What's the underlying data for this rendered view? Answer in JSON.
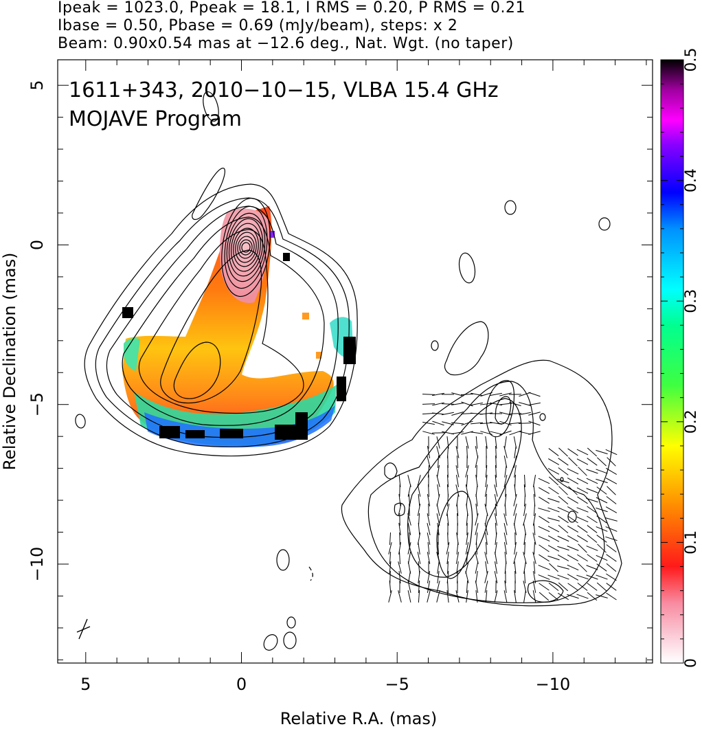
{
  "header": {
    "line1": "Ipeak = 1023.0, Ppeak = 18.1, I RMS = 0.20, P RMS = 0.21",
    "line2": "Ibase = 0.50, Pbase = 0.69 (mJy/beam), steps: x 2",
    "line3": "Beam: 0.90x0.54 mas at −12.6 deg., Nat. Wgt. (no taper)"
  },
  "chart_data": {
    "type": "heatmap",
    "title": "1611+343, 2010−10−15, VLBA 15.4 GHz",
    "subtitle": "MOJAVE Program",
    "xlabel": "Relative R.A. (mas)",
    "ylabel": "Relative Declination (mas)",
    "xlim": [
      5.9,
      -13.2
    ],
    "ylim": [
      -13.1,
      5.8
    ],
    "x_ticks": [
      5,
      0,
      -5,
      -10
    ],
    "x_tick_labels": [
      "5",
      "0",
      "−5",
      "−10"
    ],
    "y_ticks": [
      5,
      0,
      -5,
      -10
    ],
    "y_tick_labels": [
      "5",
      "0",
      "−5",
      "−10"
    ],
    "colorbar": {
      "range": [
        0,
        0.5
      ],
      "ticks": [
        0,
        0.1,
        0.2,
        0.3,
        0.4,
        0.5
      ],
      "tick_labels": [
        "0",
        "0.1",
        "0.2",
        "0.3",
        "0.4",
        "0.5"
      ]
    },
    "ipeak_mJy_per_beam": 1023.0,
    "ppeak_mJy_per_beam": 18.1,
    "i_rms": 0.2,
    "p_rms": 0.21,
    "ibase": 0.5,
    "pbase": 0.69,
    "contour_step_factor": 2,
    "beam": {
      "major_mas": 0.9,
      "minor_mas": 0.54,
      "pa_deg": -12.6
    },
    "grid": false,
    "panels": [
      "total intensity contours with fractional polarization color (core at 0,0)",
      "polarized intensity contours with EVPA ticks (offset copy)"
    ]
  }
}
